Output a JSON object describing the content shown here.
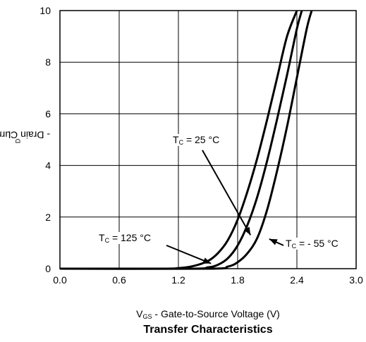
{
  "chart_data": {
    "type": "line",
    "title": "Transfer Characteristics",
    "xlabel": {
      "main": "V",
      "sub": "GS",
      "rest": " - Gate-to-Source Voltage (V)"
    },
    "ylabel": {
      "main": "I",
      "sub": "D",
      "rest": " - Drain Current (A)"
    },
    "xlim": [
      0.0,
      3.0
    ],
    "ylim": [
      0,
      10
    ],
    "x_ticks": [
      0.0,
      0.6,
      1.2,
      1.8,
      2.4,
      3.0
    ],
    "x_tick_labels": [
      "0.0",
      "0.6",
      "1.2",
      "1.8",
      "2.4",
      "3.0"
    ],
    "y_ticks": [
      0,
      2,
      4,
      6,
      8,
      10
    ],
    "y_tick_labels": [
      "0",
      "2",
      "4",
      "6",
      "8",
      "10"
    ],
    "grid": true,
    "series": [
      {
        "name": "T_C = 125 °C",
        "x": [
          0.0,
          1.0,
          1.2,
          1.35,
          1.5,
          1.6,
          1.7,
          1.8,
          1.9,
          2.0,
          2.1,
          2.2,
          2.3,
          2.4
        ],
        "y": [
          0.0,
          0.0,
          0.02,
          0.1,
          0.3,
          0.6,
          1.1,
          1.9,
          3.0,
          4.3,
          5.8,
          7.4,
          9.0,
          10.0
        ]
      },
      {
        "name": "T_C = 25 °C",
        "x": [
          0.0,
          1.3,
          1.5,
          1.6,
          1.7,
          1.8,
          1.9,
          2.0,
          2.1,
          2.2,
          2.3,
          2.4,
          2.45
        ],
        "y": [
          0.0,
          0.0,
          0.05,
          0.15,
          0.4,
          0.9,
          1.7,
          2.8,
          4.2,
          5.8,
          7.5,
          9.3,
          10.0
        ]
      },
      {
        "name": "T_C = - 55 °C",
        "x": [
          0.0,
          1.5,
          1.7,
          1.8,
          1.9,
          2.0,
          2.1,
          2.2,
          2.3,
          2.4,
          2.5,
          2.55
        ],
        "y": [
          0.0,
          0.0,
          0.08,
          0.25,
          0.6,
          1.2,
          2.3,
          3.8,
          5.5,
          7.4,
          9.3,
          10.0
        ]
      }
    ],
    "annotations": [
      {
        "main": "T",
        "sub": "C",
        "rest": " = 25 °C"
      },
      {
        "main": "T",
        "sub": "C",
        "rest": " = 125 °C"
      },
      {
        "main": "T",
        "sub": "C",
        "rest": " = - 55 °C"
      }
    ]
  }
}
